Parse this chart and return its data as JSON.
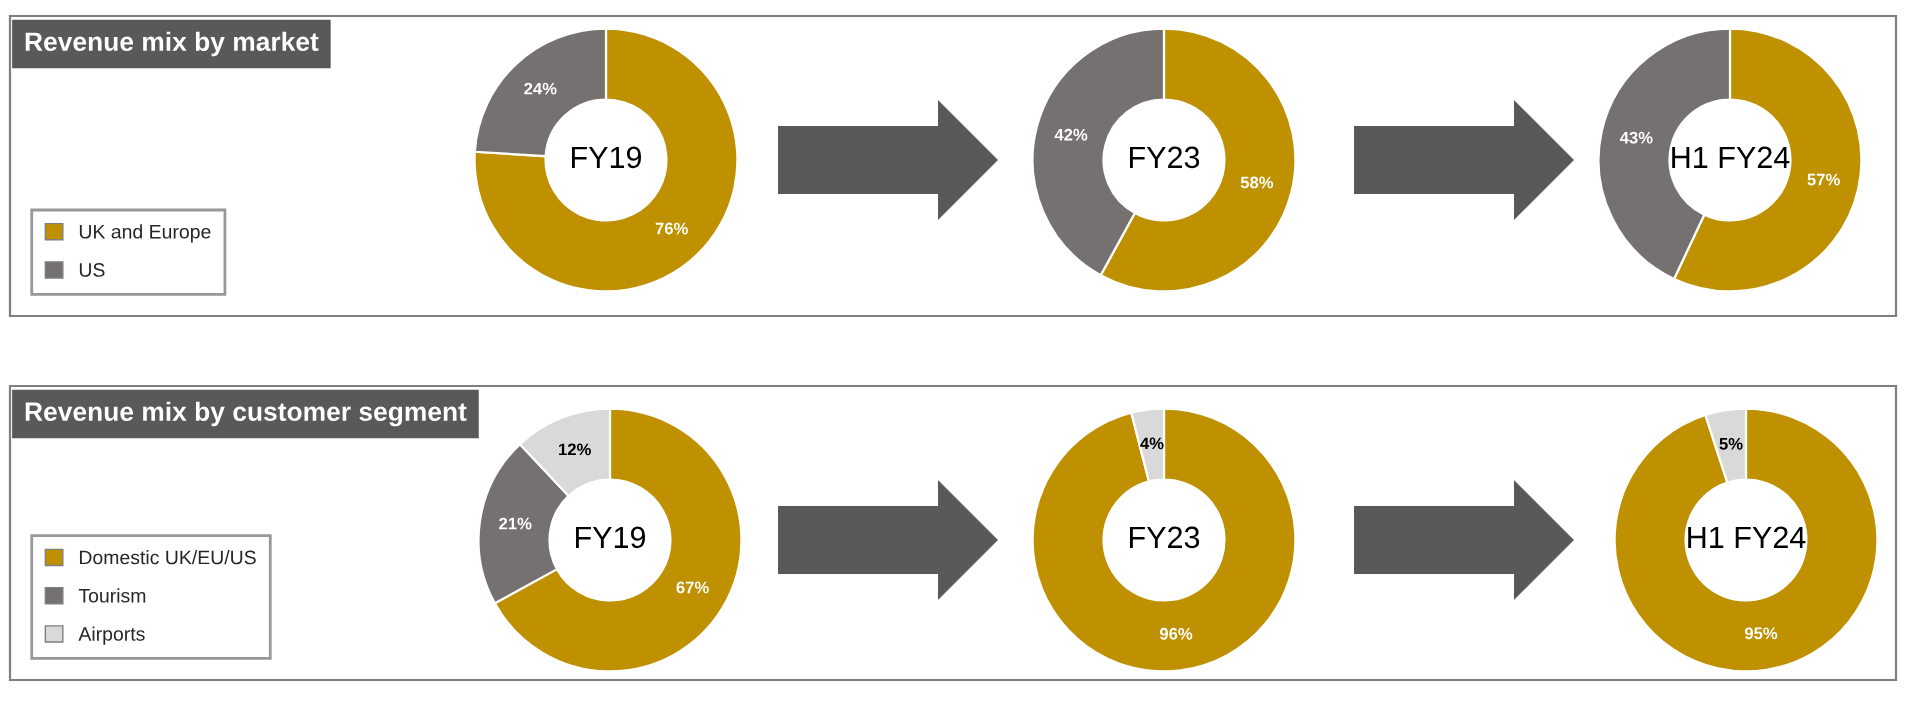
{
  "chart_data": [
    {
      "type": "donut",
      "title": "Revenue mix by market",
      "categories": [
        "UK and Europe",
        "US"
      ],
      "values": [
        76,
        24
      ],
      "colors": [
        "#bf9000",
        "#767171"
      ],
      "value_labels": [
        "76%",
        "24%"
      ],
      "annotations": [
        "FY19"
      ],
      "legend": "left"
    },
    {
      "type": "donut",
      "categories": [
        null,
        null
      ],
      "values": [
        58,
        42
      ],
      "colors": [
        "#bf9000",
        "#767171"
      ],
      "value_labels": [
        "58%",
        "42%"
      ],
      "annotations": [
        "FY23"
      ]
    },
    {
      "type": "donut",
      "categories": [
        null,
        null
      ],
      "values": [
        57,
        43
      ],
      "colors": [
        "#bf9000",
        "#767171"
      ],
      "value_labels": [
        "57%",
        "43%"
      ],
      "annotations": [
        "H1 FY24"
      ]
    },
    {
      "type": "donut",
      "title": "Revenue mix by customer segment",
      "categories": [
        "Domestic UK/EU/US",
        "Tourism",
        "Airports"
      ],
      "values": [
        67,
        21,
        12
      ],
      "colors": [
        "#bf9000",
        "#767171",
        "#d9d9d9"
      ],
      "value_labels": [
        "67%",
        "21%",
        "12%"
      ],
      "annotations": [
        "FY19"
      ],
      "legend": "left"
    },
    {
      "type": "donut",
      "categories": [
        null,
        null
      ],
      "values": [
        96,
        4
      ],
      "colors": [
        "#bf9000",
        "#d9d9d9"
      ],
      "value_labels": [
        "96%",
        "4%"
      ],
      "annotations": [
        "FY23"
      ]
    },
    {
      "type": "donut",
      "categories": [
        null,
        null
      ],
      "values": [
        95,
        5
      ],
      "colors": [
        "#bf9000",
        "#d9d9d9"
      ],
      "value_labels": [
        "95%",
        "5%"
      ],
      "annotations": [
        "H1 FY24"
      ]
    }
  ]
}
